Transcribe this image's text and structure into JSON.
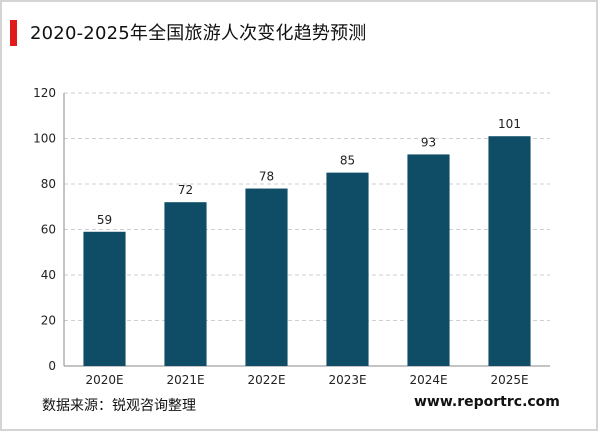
{
  "header": {
    "title": "2020-2025年全国旅游人次变化趋势预测"
  },
  "chart_data": {
    "type": "bar",
    "categories": [
      "2020E",
      "2021E",
      "2022E",
      "2023E",
      "2024E",
      "2025E"
    ],
    "values": [
      59,
      72,
      78,
      85,
      93,
      101
    ],
    "title": "2020-2025年全国旅游人次变化趋势预测",
    "xlabel": "",
    "ylabel": "",
    "ylim": [
      0,
      120
    ],
    "yticks": [
      "0",
      "20",
      "40",
      "60",
      "80",
      "100",
      "120"
    ],
    "grid": true,
    "bar_color": "#0f4c66",
    "grid_color": "#cfcfcf"
  },
  "footer": {
    "source": "数据来源：锐观咨询整理",
    "site": "www.reportrc.com"
  }
}
